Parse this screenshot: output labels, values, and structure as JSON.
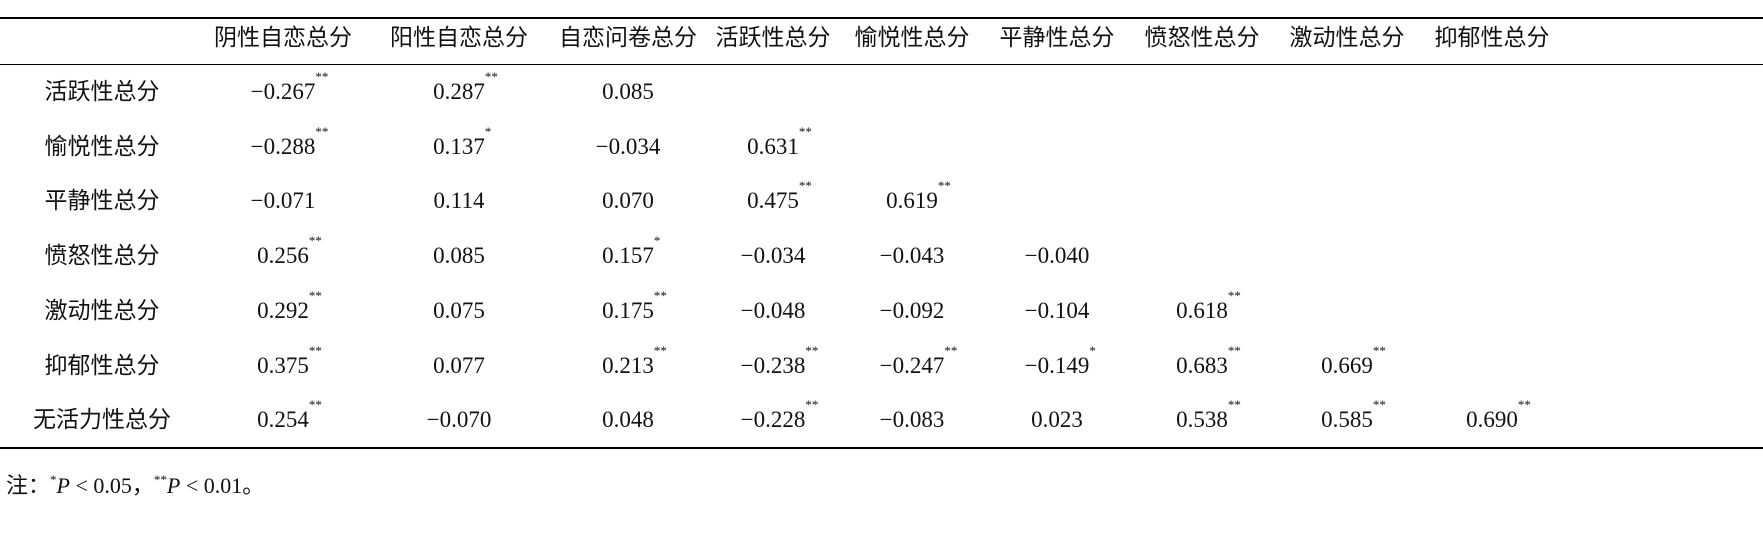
{
  "table": {
    "columns": [
      "阴性自恋总分",
      "阳性自恋总分",
      "自恋问卷总分",
      "活跃性总分",
      "愉悦性总分",
      "平静性总分",
      "愤怒性总分",
      "激动性总分",
      "抑郁性总分"
    ],
    "rows": [
      {
        "label": "活跃性总分",
        "cells": [
          {
            "v": "−0.267",
            "sup": "**"
          },
          {
            "v": "0.287",
            "sup": "**"
          },
          {
            "v": "0.085"
          }
        ]
      },
      {
        "label": "愉悦性总分",
        "cells": [
          {
            "v": "−0.288",
            "sup": "**"
          },
          {
            "v": "0.137",
            "sup": "*"
          },
          {
            "v": "−0.034"
          },
          {
            "v": "0.631",
            "sup": "**"
          }
        ]
      },
      {
        "label": "平静性总分",
        "cells": [
          {
            "v": "−0.071"
          },
          {
            "v": "0.114"
          },
          {
            "v": "0.070"
          },
          {
            "v": "0.475",
            "sup": "**"
          },
          {
            "v": "0.619",
            "sup": "**"
          }
        ]
      },
      {
        "label": "愤怒性总分",
        "cells": [
          {
            "v": "0.256",
            "sup": "**"
          },
          {
            "v": "0.085"
          },
          {
            "v": "0.157",
            "sup": "*"
          },
          {
            "v": "−0.034"
          },
          {
            "v": "−0.043"
          },
          {
            "v": "−0.040"
          }
        ]
      },
      {
        "label": "激动性总分",
        "cells": [
          {
            "v": "0.292",
            "sup": "**"
          },
          {
            "v": "0.075"
          },
          {
            "v": "0.175",
            "sup": "**"
          },
          {
            "v": "−0.048"
          },
          {
            "v": "−0.092"
          },
          {
            "v": "−0.104"
          },
          {
            "v": "0.618",
            "sup": "**"
          }
        ]
      },
      {
        "label": "抑郁性总分",
        "cells": [
          {
            "v": "0.375",
            "sup": "**"
          },
          {
            "v": "0.077"
          },
          {
            "v": "0.213",
            "sup": "**"
          },
          {
            "v": "−0.238",
            "sup": "**"
          },
          {
            "v": "−0.247",
            "sup": "**"
          },
          {
            "v": "−0.149",
            "sup": "*"
          },
          {
            "v": "0.683",
            "sup": "**"
          },
          {
            "v": "0.669",
            "sup": "**"
          }
        ]
      },
      {
        "label": "无活力性总分",
        "cells": [
          {
            "v": "0.254",
            "sup": "**"
          },
          {
            "v": "−0.070"
          },
          {
            "v": "0.048"
          },
          {
            "v": "−0.228",
            "sup": "**"
          },
          {
            "v": "−0.083"
          },
          {
            "v": "0.023"
          },
          {
            "v": "0.538",
            "sup": "**"
          },
          {
            "v": "0.585",
            "sup": "**"
          },
          {
            "v": "0.690",
            "sup": "**"
          }
        ]
      }
    ]
  },
  "note": [
    {
      "text": "注："
    },
    {
      "sup": "*"
    },
    {
      "italic": "P"
    },
    {
      "text": " < 0.05，"
    },
    {
      "sup": "**"
    },
    {
      "italic": "P"
    },
    {
      "text": " < 0.01。"
    }
  ]
}
